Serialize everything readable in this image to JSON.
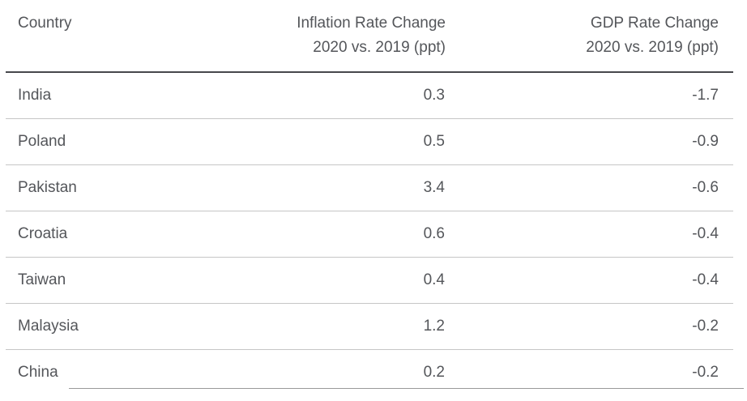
{
  "table": {
    "columns": {
      "country": {
        "label": "Country"
      },
      "inflation": {
        "label_line1": "Inflation Rate Change",
        "label_line2": "2020 vs. 2019 (ppt)"
      },
      "gdp": {
        "label_line1": "GDP Rate Change",
        "label_line2": "2020 vs. 2019 (ppt)"
      }
    },
    "rows": [
      {
        "country": "India",
        "inflation": "0.3",
        "gdp": "-1.7"
      },
      {
        "country": "Poland",
        "inflation": "0.5",
        "gdp": "-0.9"
      },
      {
        "country": "Pakistan",
        "inflation": "3.4",
        "gdp": "-0.6"
      },
      {
        "country": "Croatia",
        "inflation": "0.6",
        "gdp": "-0.4"
      },
      {
        "country": "Taiwan",
        "inflation": "0.4",
        "gdp": "-0.4"
      },
      {
        "country": "Malaysia",
        "inflation": "1.2",
        "gdp": "-0.2"
      },
      {
        "country": "China",
        "inflation": "0.2",
        "gdp": "-0.2"
      }
    ]
  },
  "colors": {
    "text": "#54565a",
    "header_border": "#47484c",
    "row_border": "#c6c6c6",
    "background": "#ffffff"
  },
  "chart_data": {
    "type": "table",
    "title": "",
    "columns": [
      "Country",
      "Inflation Rate Change 2020 vs. 2019 (ppt)",
      "GDP Rate Change 2020 vs. 2019 (ppt)"
    ],
    "rows": [
      [
        "India",
        0.3,
        -1.7
      ],
      [
        "Poland",
        0.5,
        -0.9
      ],
      [
        "Pakistan",
        3.4,
        -0.6
      ],
      [
        "Croatia",
        0.6,
        -0.4
      ],
      [
        "Taiwan",
        0.4,
        -0.4
      ],
      [
        "Malaysia",
        1.2,
        -0.2
      ],
      [
        "China",
        0.2,
        -0.2
      ]
    ]
  }
}
